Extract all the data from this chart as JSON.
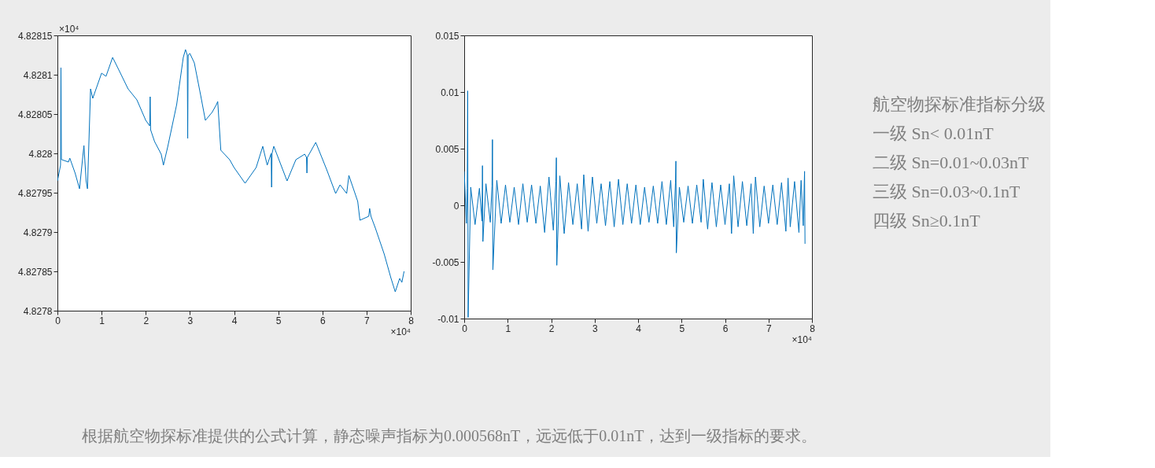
{
  "chart_data": [
    {
      "type": "line",
      "color": "#0072bd",
      "xlim": [
        0,
        8
      ],
      "xticks": [
        0,
        1,
        2,
        3,
        4,
        5,
        6,
        7,
        8
      ],
      "ylim": [
        4.8278,
        4.82815
      ],
      "yticks": [
        4.8278,
        4.82785,
        4.8279,
        4.82795,
        4.828,
        4.82805,
        4.8281,
        4.82815
      ],
      "grid": false,
      "annotations": [
        "×10⁴",
        "×10⁴"
      ],
      "x": [
        0,
        0.05,
        0.07,
        0.08,
        0.09,
        0.1,
        0.25,
        0.28,
        0.4,
        0.5,
        0.6,
        0.65,
        0.68,
        0.75,
        0.8,
        1.0,
        1.1,
        1.25,
        1.4,
        1.6,
        1.8,
        2.0,
        2.09,
        2.1,
        2.11,
        2.2,
        2.35,
        2.4,
        2.5,
        2.7,
        2.85,
        2.9,
        2.94,
        2.95,
        2.96,
        3.0,
        3.1,
        3.25,
        3.35,
        3.5,
        3.6,
        3.63,
        3.7,
        3.9,
        4.0,
        4.25,
        4.5,
        4.65,
        4.75,
        4.84,
        4.85,
        4.86,
        4.9,
        5.2,
        5.4,
        5.6,
        5.64,
        5.65,
        5.66,
        5.85,
        6.1,
        6.3,
        6.4,
        6.55,
        6.6,
        6.8,
        6.85,
        7.05,
        7.07,
        7.1,
        7.2,
        7.4,
        7.55,
        7.65,
        7.75,
        7.8,
        7.85
      ],
      "values": [
        4.827965,
        4.827979,
        4.827985,
        4.828109,
        4.827992,
        4.827992,
        4.827989,
        4.827994,
        4.827975,
        4.827955,
        4.82801,
        4.827965,
        4.827955,
        4.828082,
        4.82807,
        4.828102,
        4.828098,
        4.828122,
        4.828105,
        4.828082,
        4.828068,
        4.828042,
        4.828035,
        4.828072,
        4.82803,
        4.828015,
        4.827999,
        4.827985,
        4.828009,
        4.828062,
        4.828122,
        4.828132,
        4.828125,
        4.828019,
        4.828125,
        4.828127,
        4.828115,
        4.828072,
        4.828042,
        4.828052,
        4.828062,
        4.828066,
        4.828004,
        4.827992,
        4.827982,
        4.827962,
        4.827982,
        4.828009,
        4.827985,
        4.828,
        4.827957,
        4.828,
        4.828009,
        4.827965,
        4.827992,
        4.827999,
        4.827995,
        4.827975,
        4.827995,
        4.828014,
        4.827979,
        4.827949,
        4.82796,
        4.827949,
        4.827972,
        4.827939,
        4.827915,
        4.82792,
        4.82793,
        4.82792,
        4.827905,
        4.827872,
        4.827842,
        4.827824,
        4.827841,
        4.827836,
        4.82785
      ]
    },
    {
      "type": "line",
      "color": "#0072bd",
      "xlim": [
        0,
        8
      ],
      "xticks": [
        0,
        1,
        2,
        3,
        4,
        5,
        6,
        7,
        8
      ],
      "ylim": [
        -0.01,
        0.015
      ],
      "yticks": [
        -0.01,
        -0.005,
        0,
        0.005,
        0.01,
        0.015
      ],
      "grid": false,
      "annotations": [
        "×10⁴"
      ],
      "x": [
        0,
        0.05,
        0.07,
        0.08,
        0.09,
        0.15,
        0.25,
        0.35,
        0.41,
        0.42,
        0.43,
        0.5,
        0.6,
        0.64,
        0.65,
        0.66,
        0.75,
        0.85,
        0.95,
        1.05,
        1.15,
        1.25,
        1.35,
        1.45,
        1.55,
        1.65,
        1.75,
        1.85,
        1.95,
        2.05,
        2.11,
        2.12,
        2.13,
        2.2,
        2.3,
        2.4,
        2.5,
        2.6,
        2.7,
        2.75,
        2.85,
        2.95,
        3.05,
        3.15,
        3.25,
        3.35,
        3.45,
        3.55,
        3.65,
        3.75,
        3.85,
        3.95,
        4.05,
        4.15,
        4.25,
        4.35,
        4.45,
        4.55,
        4.65,
        4.75,
        4.82,
        4.86,
        4.87,
        4.88,
        4.95,
        5.05,
        5.15,
        5.25,
        5.35,
        5.45,
        5.5,
        5.6,
        5.7,
        5.8,
        5.9,
        6.0,
        6.1,
        6.15,
        6.2,
        6.3,
        6.4,
        6.5,
        6.6,
        6.65,
        6.7,
        6.8,
        6.9,
        7.0,
        7.1,
        7.2,
        7.3,
        7.4,
        7.45,
        7.5,
        7.6,
        7.7,
        7.75,
        7.8,
        7.83,
        7.84
      ],
      "values": [
        0.003,
        -0.0016,
        0.0015,
        0.0101,
        -0.0099,
        0.0016,
        -0.0017,
        0.0015,
        -0.0014,
        0.0035,
        -0.0032,
        0.0019,
        -0.0015,
        0.0017,
        0.0058,
        -0.0057,
        0.0022,
        -0.0016,
        0.0018,
        -0.0015,
        0.0016,
        -0.0017,
        0.0019,
        -0.0015,
        0.0018,
        -0.0016,
        0.0017,
        -0.0024,
        0.0025,
        -0.0022,
        0.0021,
        0.0042,
        -0.0053,
        0.0026,
        -0.0025,
        0.002,
        -0.0017,
        0.0019,
        -0.0021,
        0.0027,
        -0.0023,
        0.0025,
        -0.0016,
        0.0019,
        -0.0018,
        0.0021,
        -0.0019,
        0.0023,
        -0.0017,
        0.0019,
        -0.0016,
        0.0018,
        -0.0017,
        0.0016,
        -0.0015,
        0.0017,
        -0.0016,
        0.0021,
        -0.0017,
        0.0022,
        -0.0019,
        0.002,
        0.0039,
        -0.0042,
        0.0016,
        -0.0015,
        0.0017,
        -0.0016,
        0.0018,
        -0.0015,
        0.0023,
        -0.0021,
        0.002,
        -0.0019,
        0.0018,
        -0.0017,
        0.0019,
        -0.0025,
        0.0026,
        -0.0019,
        0.0021,
        -0.0018,
        0.0019,
        -0.0025,
        0.0025,
        -0.0019,
        0.0017,
        -0.0016,
        0.0018,
        -0.0017,
        0.002,
        -0.0023,
        0.0024,
        -0.0019,
        0.0021,
        -0.0024,
        0.0022,
        -0.0018,
        0.003,
        -0.0034
      ]
    },
    {
      "type": "other",
      "title": "航空物探标准指标分级",
      "annotations": [
        "一级 Sn< 0.01nT",
        "二级 Sn=0.01~0.03nT",
        "三级 Sn=0.03~0.1nT",
        "四级 Sn≥0.1nT"
      ]
    },
    {
      "type": "other",
      "annotations": [
        "根据航空物探标准提供的公式计算，静态噪声指标为0.000568nT，远远低于0.01nT，达到一级指标的要求。"
      ]
    }
  ]
}
